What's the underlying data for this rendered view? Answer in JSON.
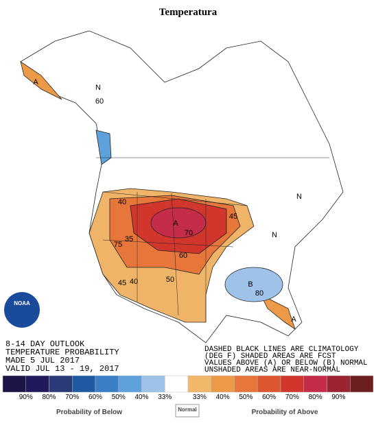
{
  "title": "Temperatura",
  "map": {
    "labels": [
      "N",
      "60",
      "A",
      "N",
      "N",
      "A",
      "70",
      "40",
      "45",
      "35",
      "75",
      "60",
      "50",
      "40",
      "45",
      "B",
      "80",
      "A"
    ]
  },
  "outlook": [
    "8-14 DAY OUTLOOK",
    "TEMPERATURE PROBABILITY",
    "MADE  5 JUL 2017",
    "VALID  JUL 13 - 19, 2017"
  ],
  "notes": [
    "DASHED BLACK LINES ARE CLIMATOLOGY",
    "(DEG F) SHADED AREAS ARE FCST",
    "VALUES ABOVE (A) OR BELOW (B) NORMAL",
    "UNSHADED AREAS ARE NEAR-NORMAL"
  ],
  "logo": "NOAA",
  "legend": {
    "colors": [
      "#1c1446",
      "#201a5c",
      "#2c3a78",
      "#1f5aa3",
      "#3a7fc6",
      "#5ea2dc",
      "#9fc3e8",
      "#ffffff",
      "#f2b86a",
      "#ec9a48",
      "#e6763a",
      "#dc5630",
      "#d0362c",
      "#c42c4a",
      "#9a2432",
      "#6e2020"
    ],
    "below": [
      "90%",
      "80%",
      "70%",
      "60%",
      "50%",
      "40%",
      "33%"
    ],
    "above": [
      "33%",
      "40%",
      "50%",
      "60%",
      "70%",
      "80%",
      "90%"
    ],
    "below_caption": "Probability of Below",
    "normal_caption": "Normal",
    "above_caption": "Probability of Above"
  }
}
